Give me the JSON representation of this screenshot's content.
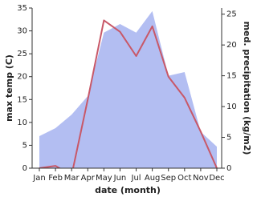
{
  "chart_data": {
    "type": "line",
    "x_label": "date (month)",
    "y_label": "max temp (C)",
    "y2_label": "med. precipitation (kg/m2)",
    "categories": [
      "Jan",
      "Feb",
      "Mar",
      "Apr",
      "May",
      "Jun",
      "Jul",
      "Aug",
      "Sep",
      "Oct",
      "Nov",
      "Dec"
    ],
    "series": [
      {
        "kind": "area",
        "axis": "y2",
        "color": "#b3bef2",
        "values": [
          5.2,
          6.5,
          8.7,
          11.7,
          22,
          23.4,
          22,
          25.5,
          15,
          15.6,
          5.9,
          3.5
        ]
      },
      {
        "kind": "line",
        "axis": "y",
        "color": "#c85868",
        "values": [
          0,
          0.5,
          -1.5,
          15,
          32.3,
          29.8,
          24.5,
          31,
          20,
          15.4,
          8,
          0
        ]
      }
    ],
    "ylim": [
      0,
      35
    ],
    "yticks": [
      0,
      5,
      10,
      15,
      20,
      25,
      30,
      35
    ],
    "y2lim": [
      0,
      26
    ],
    "y2ticks": [
      0,
      5,
      10,
      15,
      20,
      25
    ]
  }
}
